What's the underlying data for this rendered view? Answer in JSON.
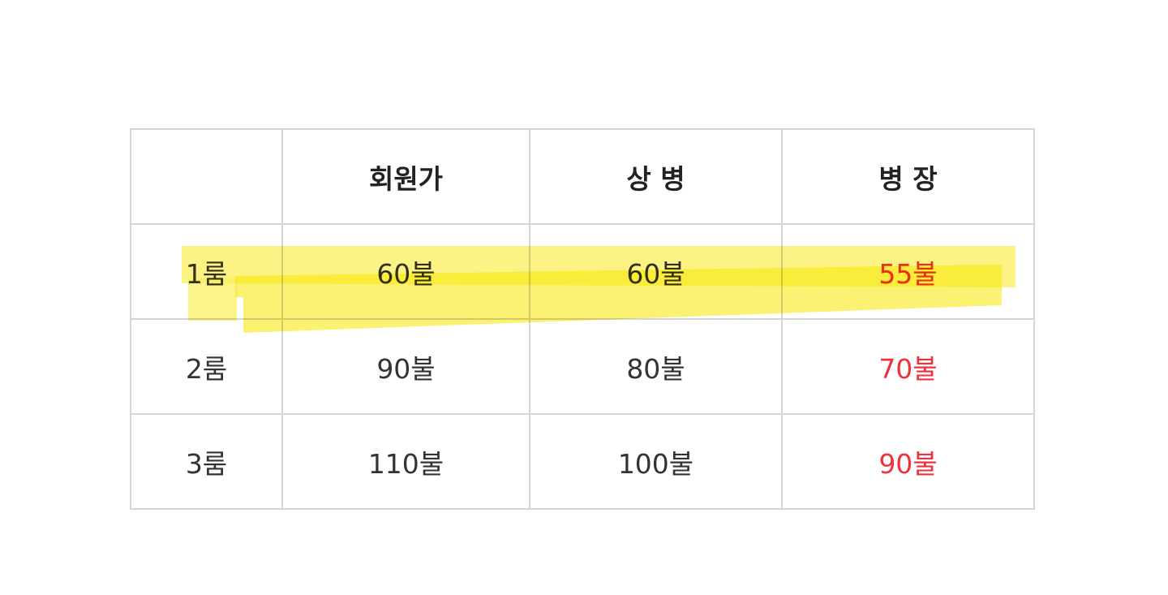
{
  "table": {
    "headers": [
      "",
      "회원가",
      "상 병",
      "병 장"
    ],
    "rows": [
      {
        "label": "1룸",
        "member": "60불",
        "sangbyeong": "60불",
        "byeongjang": "55불"
      },
      {
        "label": "2룸",
        "member": "90불",
        "sangbyeong": "80불",
        "byeongjang": "70불"
      },
      {
        "label": "3룸",
        "member": "110불",
        "sangbyeong": "100불",
        "byeongjang": "90불"
      }
    ],
    "highlighted_row": "1룸",
    "colors": {
      "highlight": "#f7e600",
      "accent_text": "#f0303a",
      "border": "#d6d6d6"
    }
  }
}
